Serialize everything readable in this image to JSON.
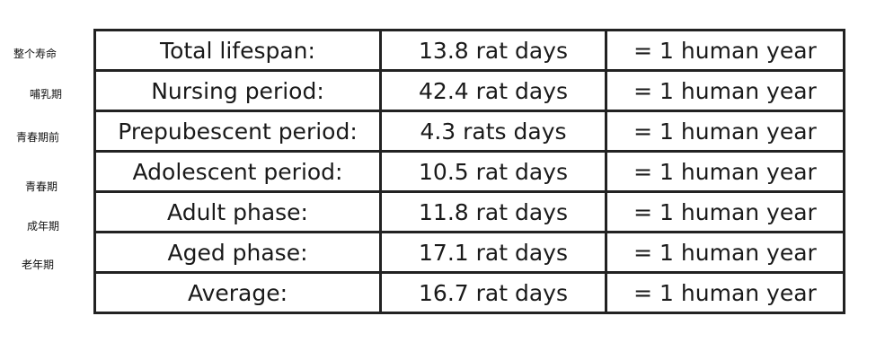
{
  "side_labels": [
    "整个寿命",
    "哺乳期",
    "青春期前",
    "青春期",
    "成年期",
    "老年期"
  ],
  "rows": [
    {
      "phase": "Total lifespan:",
      "rat": "13.8 rat days",
      "human": "= 1 human year"
    },
    {
      "phase": "Nursing period:",
      "rat": "42.4 rat days",
      "human": "= 1 human year"
    },
    {
      "phase": "Prepubescent period:",
      "rat": "4.3 rats days",
      "human": "= 1 human year"
    },
    {
      "phase": "Adolescent period:",
      "rat": "10.5 rat days",
      "human": "= 1 human year"
    },
    {
      "phase": "Adult phase:",
      "rat": "11.8 rat days",
      "human": "= 1 human year"
    },
    {
      "phase": "Aged phase:",
      "rat": "17.1 rat days",
      "human": "= 1 human year"
    },
    {
      "phase": "Average:",
      "rat": "16.7 rat days",
      "human": "= 1 human year"
    }
  ]
}
